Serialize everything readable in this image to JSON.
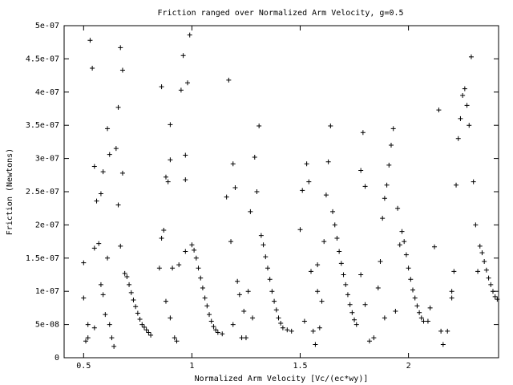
{
  "chart_data": {
    "type": "scatter",
    "title": "Friction ranged over Normalized Arm Velocity, g=0.5",
    "x_label": "Normalized Arm Velocity [Vc/(ec*wy)]",
    "y_label": "Friction (Newtons)",
    "color": "#000000",
    "marker": "+",
    "xlim": [
      0.41,
      2.416
    ],
    "ylim": [
      0,
      5e-07
    ],
    "xticks": [
      0.5,
      1,
      1.5,
      2
    ],
    "yticks": [
      0,
      {
        "value": 5e-08,
        "label": "5e-08"
      },
      {
        "value": 1e-07,
        "label": "1e-07"
      },
      {
        "value": 1.5e-07,
        "label": "1.5e-07"
      },
      {
        "value": 2e-07,
        "label": "2e-07"
      },
      {
        "value": 2.5e-07,
        "label": "2.5e-07"
      },
      {
        "value": 3e-07,
        "label": "3e-07"
      },
      {
        "value": 3.5e-07,
        "label": "3.5e-07"
      },
      {
        "value": 4e-07,
        "label": "4e-07"
      },
      {
        "value": 4.5e-07,
        "label": "4.5e-07"
      },
      {
        "value": 5e-07,
        "label": "5e-07"
      }
    ],
    "x": [
      0.5,
      0.5,
      0.51,
      0.52,
      0.52,
      0.53,
      0.54,
      0.55,
      0.55,
      0.56,
      0.57,
      0.58,
      0.58,
      0.59,
      0.6,
      0.61,
      0.61,
      0.62,
      0.63,
      0.64,
      0.65,
      0.66,
      0.66,
      0.67,
      0.67,
      0.68,
      0.68,
      0.59,
      0.55,
      0.62,
      0.69,
      0.7,
      0.71,
      0.72,
      0.73,
      0.74,
      0.75,
      0.76,
      0.77,
      0.78,
      0.79,
      0.8,
      0.81,
      0.85,
      0.86,
      0.87,
      0.88,
      0.89,
      0.9,
      0.9,
      0.91,
      0.92,
      0.93,
      0.95,
      0.96,
      0.97,
      0.97,
      0.98,
      0.99,
      0.88,
      0.86,
      0.94,
      0.97,
      0.9,
      1.0,
      1.01,
      1.02,
      1.03,
      1.04,
      1.05,
      1.06,
      1.07,
      1.08,
      1.09,
      1.1,
      1.11,
      1.12,
      1.14,
      1.16,
      1.17,
      1.18,
      1.19,
      1.2,
      1.21,
      1.22,
      1.23,
      1.24,
      1.26,
      1.28,
      1.29,
      1.3,
      1.31,
      1.27,
      1.25,
      1.19,
      1.32,
      1.33,
      1.34,
      1.35,
      1.36,
      1.37,
      1.38,
      1.39,
      1.4,
      1.41,
      1.42,
      1.44,
      1.46,
      1.5,
      1.51,
      1.53,
      1.54,
      1.55,
      1.56,
      1.57,
      1.58,
      1.59,
      1.61,
      1.62,
      1.63,
      1.64,
      1.6,
      1.52,
      1.58,
      1.65,
      1.66,
      1.67,
      1.68,
      1.69,
      1.7,
      1.71,
      1.72,
      1.73,
      1.74,
      1.75,
      1.76,
      1.78,
      1.79,
      1.8,
      1.78,
      1.8,
      1.82,
      1.84,
      1.86,
      1.87,
      1.88,
      1.89,
      1.9,
      1.91,
      1.92,
      1.93,
      1.95,
      1.96,
      1.94,
      1.89,
      1.97,
      1.98,
      1.99,
      2.0,
      2.01,
      2.02,
      2.03,
      2.04,
      2.05,
      2.06,
      2.07,
      2.09,
      2.12,
      2.14,
      2.15,
      2.16,
      2.18,
      2.2,
      2.21,
      2.22,
      2.23,
      2.24,
      2.25,
      2.26,
      2.27,
      2.28,
      2.29,
      2.3,
      2.31,
      2.32,
      2.1,
      2.2,
      2.33,
      2.34,
      2.35,
      2.36,
      2.37,
      2.38,
      2.39,
      2.4,
      2.41
    ],
    "values": [
      1.43e-07,
      9e-08,
      2.5e-08,
      3e-08,
      5e-08,
      4.78e-07,
      4.36e-07,
      2.88e-07,
      1.65e-07,
      2.36e-07,
      1.72e-07,
      2.47e-07,
      1.1e-07,
      2.8e-07,
      6.5e-08,
      3.45e-07,
      1.5e-07,
      3.06e-07,
      3e-08,
      1.7e-08,
      3.15e-07,
      2.3e-07,
      3.77e-07,
      4.67e-07,
      1.68e-07,
      4.33e-07,
      2.78e-07,
      9.5e-08,
      4.5e-08,
      5e-08,
      1.27e-07,
      1.22e-07,
      1.1e-07,
      9.8e-08,
      8.7e-08,
      7.7e-08,
      6.7e-08,
      5.8e-08,
      5e-08,
      4.6e-08,
      4.2e-08,
      3.8e-08,
      3.4e-08,
      1.35e-07,
      4.08e-07,
      1.92e-07,
      2.72e-07,
      2.65e-07,
      3.51e-07,
      2.98e-07,
      1.35e-07,
      3e-08,
      2.5e-08,
      4.03e-07,
      4.55e-07,
      3.05e-07,
      2.68e-07,
      4.14e-07,
      4.86e-07,
      8.5e-08,
      1.8e-07,
      1.4e-07,
      1.6e-07,
      6e-08,
      1.7e-07,
      1.62e-07,
      1.5e-07,
      1.35e-07,
      1.2e-07,
      1.05e-07,
      9e-08,
      7.8e-08,
      6.5e-08,
      5.5e-08,
      4.7e-08,
      4.2e-08,
      3.8e-08,
      3.6e-08,
      2.42e-07,
      4.18e-07,
      1.75e-07,
      2.92e-07,
      2.56e-07,
      1.15e-07,
      9.5e-08,
      3e-08,
      7e-08,
      1e-07,
      6e-08,
      3.02e-07,
      2.5e-07,
      3.49e-07,
      2.2e-07,
      3e-08,
      5e-08,
      1.84e-07,
      1.7e-07,
      1.52e-07,
      1.35e-07,
      1.18e-07,
      1e-07,
      8.5e-08,
      7.2e-08,
      6e-08,
      5.2e-08,
      4.5e-08,
      4.2e-08,
      4e-08,
      1.93e-07,
      2.52e-07,
      2.92e-07,
      2.65e-07,
      1.3e-07,
      4e-08,
      2e-08,
      1e-07,
      4.5e-08,
      1.75e-07,
      2.45e-07,
      2.95e-07,
      3.49e-07,
      8.5e-08,
      5.5e-08,
      1.4e-07,
      2.2e-07,
      2e-07,
      1.8e-07,
      1.6e-07,
      1.42e-07,
      1.25e-07,
      1.1e-07,
      9.5e-08,
      8e-08,
      6.8e-08,
      5.7e-08,
      5e-08,
      2.82e-07,
      3.39e-07,
      2.58e-07,
      1.25e-07,
      8e-08,
      2.5e-08,
      3e-08,
      1.05e-07,
      1.45e-07,
      2.1e-07,
      2.4e-07,
      2.6e-07,
      2.9e-07,
      3.2e-07,
      3.45e-07,
      2.25e-07,
      1.7e-07,
      7e-08,
      6e-08,
      1.9e-07,
      1.75e-07,
      1.55e-07,
      1.35e-07,
      1.18e-07,
      1.02e-07,
      9e-08,
      7.8e-08,
      6.8e-08,
      6e-08,
      5.5e-08,
      5.5e-08,
      1.67e-07,
      3.73e-07,
      4e-08,
      2e-08,
      4e-08,
      9e-08,
      1.3e-07,
      2.6e-07,
      3.3e-07,
      3.6e-07,
      3.95e-07,
      4.05e-07,
      3.8e-07,
      3.5e-07,
      4.53e-07,
      2.65e-07,
      2e-07,
      1.3e-07,
      7.5e-08,
      1e-07,
      1.68e-07,
      1.58e-07,
      1.45e-07,
      1.32e-07,
      1.2e-07,
      1.1e-07,
      1e-07,
      9.2e-08,
      8.8e-08
    ]
  }
}
